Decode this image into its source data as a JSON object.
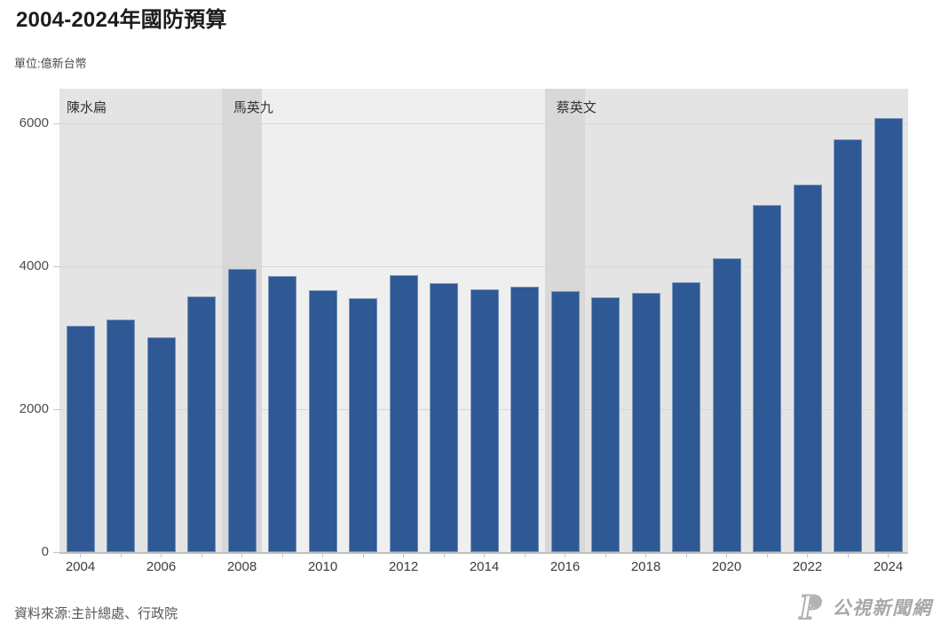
{
  "title": "2004-2024年國防預算",
  "unit_label": "單位:億新台幣",
  "source_note": "資料來源:主計總處、行政院",
  "logo": {
    "glyph": "P",
    "text": "公視新聞網",
    "color": "#a8a8a8"
  },
  "colors": {
    "bar": "#2f5994",
    "transition_band": "#d8d8d8",
    "era_dark": "#e4e4e4",
    "era_light": "#efefef",
    "gridline": "#d6d6d6",
    "axis": "#c0c0c0",
    "text_dark": "#1c1c1c",
    "text_gray": "#4d4d4d"
  },
  "chart_data": {
    "type": "bar",
    "title": "2004-2024年國防預算",
    "ylabel": "億新台幣",
    "categories": [
      2004,
      2005,
      2006,
      2007,
      2008,
      2009,
      2010,
      2011,
      2012,
      2013,
      2014,
      2015,
      2016,
      2017,
      2018,
      2019,
      2020,
      2021,
      2022,
      2023,
      2024
    ],
    "values": [
      3170,
      3250,
      3010,
      3580,
      3960,
      3860,
      3660,
      3550,
      3870,
      3770,
      3680,
      3710,
      3650,
      3560,
      3630,
      3780,
      4110,
      4860,
      5140,
      5780,
      6070
    ],
    "ylim": [
      0,
      6490
    ],
    "yticks": [
      0,
      2000,
      4000,
      6000
    ],
    "xtick_labels": [
      "2004",
      "2006",
      "2008",
      "2010",
      "2012",
      "2014",
      "2016",
      "2018",
      "2020",
      "2022",
      "2024"
    ],
    "grid": "horizontal",
    "legend": "none",
    "eras": [
      {
        "label": "陳水扁",
        "from": 2004,
        "to": 2008,
        "bg": "#e4e4e4"
      },
      {
        "label": "馬英九",
        "from": 2008,
        "to": 2016,
        "bg": "#efefef"
      },
      {
        "label": "蔡英文",
        "from": 2016,
        "to": 2024,
        "bg": "#e4e4e4"
      }
    ],
    "transition_bands": [
      {
        "year": 2008,
        "color": "#d8d8d8"
      },
      {
        "year": 2016,
        "color": "#d8d8d8"
      }
    ],
    "bar_color": "#2f5994"
  }
}
